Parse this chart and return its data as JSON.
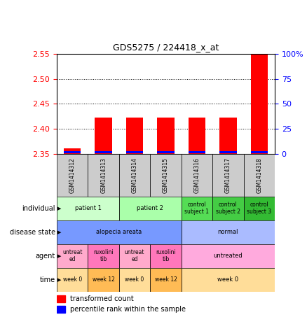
{
  "title": "GDS5275 / 224418_x_at",
  "samples": [
    "GSM1414312",
    "GSM1414313",
    "GSM1414314",
    "GSM1414315",
    "GSM1414316",
    "GSM1414317",
    "GSM1414318"
  ],
  "red_values": [
    2.361,
    2.422,
    2.422,
    2.422,
    2.422,
    2.422,
    2.548
  ],
  "blue_values": [
    2.352,
    2.352,
    2.352,
    2.352,
    2.352,
    2.352,
    2.352
  ],
  "red_baseline": 2.35,
  "ylim": [
    2.35,
    2.55
  ],
  "yticks": [
    2.35,
    2.4,
    2.45,
    2.5,
    2.55
  ],
  "y2ticks": [
    0,
    25,
    50,
    75,
    100
  ],
  "y2labels": [
    "0",
    "25",
    "50",
    "75",
    "100%"
  ],
  "sample_bg_color": "#cccccc",
  "legend_red": "transformed count",
  "legend_blue": "percentile rank within the sample",
  "row_data": [
    {
      "label": "individual",
      "cells": [
        {
          "span": [
            0,
            2
          ],
          "text": "patient 1",
          "color": "#ccffcc"
        },
        {
          "span": [
            2,
            4
          ],
          "text": "patient 2",
          "color": "#aaffaa"
        },
        {
          "span": [
            4,
            5
          ],
          "text": "control\nsubject 1",
          "color": "#55dd55"
        },
        {
          "span": [
            5,
            6
          ],
          "text": "control\nsubject 2",
          "color": "#44cc44"
        },
        {
          "span": [
            6,
            7
          ],
          "text": "control\nsubject 3",
          "color": "#33bb33"
        }
      ]
    },
    {
      "label": "disease state",
      "cells": [
        {
          "span": [
            0,
            4
          ],
          "text": "alopecia areata",
          "color": "#7799ff"
        },
        {
          "span": [
            4,
            7
          ],
          "text": "normal",
          "color": "#aabbff"
        }
      ]
    },
    {
      "label": "agent",
      "cells": [
        {
          "span": [
            0,
            1
          ],
          "text": "untreat\ned",
          "color": "#ffaacc"
        },
        {
          "span": [
            1,
            2
          ],
          "text": "ruxolini\ntib",
          "color": "#ff77bb"
        },
        {
          "span": [
            2,
            3
          ],
          "text": "untreat\ned",
          "color": "#ffaacc"
        },
        {
          "span": [
            3,
            4
          ],
          "text": "ruxolini\ntib",
          "color": "#ff77bb"
        },
        {
          "span": [
            4,
            7
          ],
          "text": "untreated",
          "color": "#ffaadd"
        }
      ]
    },
    {
      "label": "time",
      "cells": [
        {
          "span": [
            0,
            1
          ],
          "text": "week 0",
          "color": "#ffdd99"
        },
        {
          "span": [
            1,
            2
          ],
          "text": "week 12",
          "color": "#ffbb55"
        },
        {
          "span": [
            2,
            3
          ],
          "text": "week 0",
          "color": "#ffdd99"
        },
        {
          "span": [
            3,
            4
          ],
          "text": "week 12",
          "color": "#ffbb55"
        },
        {
          "span": [
            4,
            7
          ],
          "text": "week 0",
          "color": "#ffdd99"
        }
      ]
    }
  ]
}
